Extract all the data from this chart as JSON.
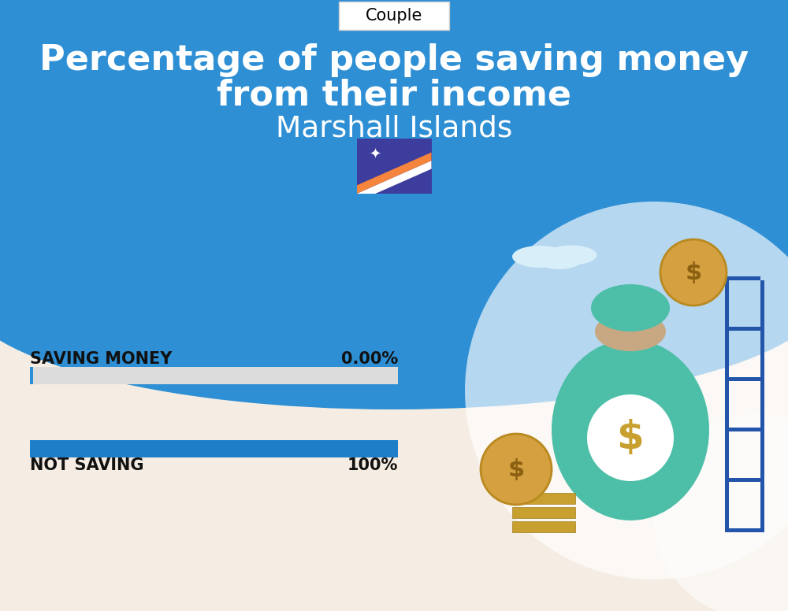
{
  "title_line1": "Percentage of people saving money",
  "title_line2": "from their income",
  "subtitle": "Marshall Islands",
  "tab_label": "Couple",
  "bar1_label": "SAVING MONEY",
  "bar1_value": 0.0,
  "bar1_value_str": "0.00%",
  "bar2_label": "NOT SAVING",
  "bar2_value": 100.0,
  "bar2_value_str": "100%",
  "bg_top_color": "#2E8FD4",
  "bg_bottom_color": "#F5EDE3",
  "bar1_bg_color": "#DCDCDC",
  "bar1_fill_color": "#2E8FD4",
  "bar2_color": "#1E7EC8",
  "text_color_title": "#FFFFFF",
  "text_color_subtitle": "#FFFFFF",
  "text_color_bars": "#111111",
  "bar_max": 100,
  "flag_bg_color": "#3D3D9E",
  "flag_orange_color": "#F5843C",
  "flag_white_color": "#FFFFFF"
}
